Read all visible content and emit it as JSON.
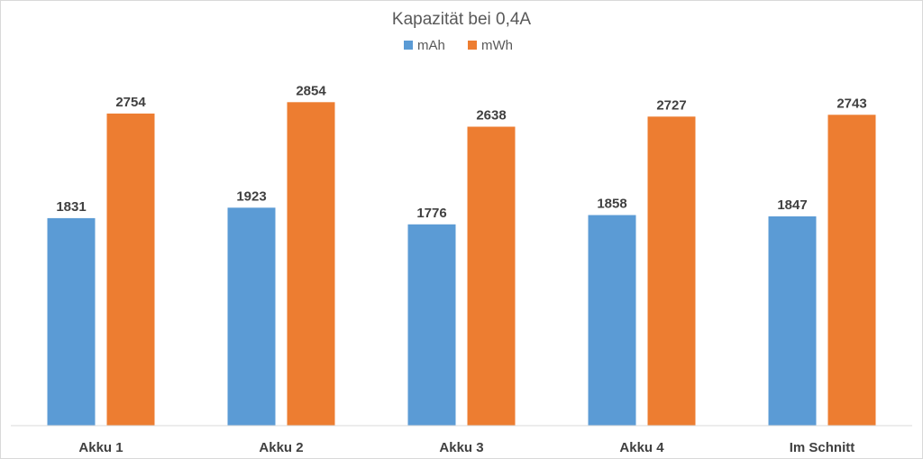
{
  "chart_data": {
    "type": "bar",
    "title": "Kapazität bei 0,4A",
    "categories": [
      "Akku 1",
      "Akku 2",
      "Akku 3",
      "Akku 4",
      "Im Schnitt"
    ],
    "series": [
      {
        "name": "mAh",
        "values": [
          1831,
          1923,
          1776,
          1858,
          1847
        ],
        "color": "#5b9bd5"
      },
      {
        "name": "mWh",
        "values": [
          2754,
          2854,
          2638,
          2727,
          2743
        ],
        "color": "#ed7d31"
      }
    ],
    "ylim": [
      0,
      3000
    ],
    "grid": false,
    "legend": "top",
    "axis_color": "#d9d9d9"
  }
}
